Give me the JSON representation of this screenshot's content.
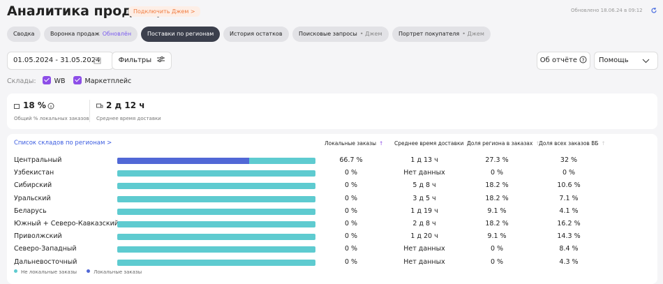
{
  "header": {
    "title": "Аналитика продавца",
    "badge": "Подключить Джем",
    "updated": "Обновлено 18.06.24 в 09:12"
  },
  "tabs": [
    {
      "label": "Сводка"
    },
    {
      "label": "Воронка продаж",
      "tag": "Обновлён"
    },
    {
      "label": "Поставки по регионам",
      "active": true
    },
    {
      "label": "История остатков"
    },
    {
      "label": "Поисковые запросы",
      "tag": "• Джем"
    },
    {
      "label": "Портрет покупателя",
      "tag": "• Джем"
    }
  ],
  "filters": {
    "date_range": "01.05.2024 - 31.05.2024",
    "filters_button": "Фильтры",
    "about": "Об отчёте",
    "help": "Помощь",
    "warehouses_label": "Склады:",
    "warehouses": [
      "WB",
      "Маркетплейс"
    ]
  },
  "stats": [
    {
      "value": "18 %",
      "caption": "Общий % локальных заказов"
    },
    {
      "value": "2 д 12 ч",
      "caption": "Среднее время доставки"
    }
  ],
  "table": {
    "title": "Список складов по регионам",
    "columns": [
      "Локальные заказы",
      "Среднее время доставки",
      "Доля региона в заказах",
      "Доля всех заказов ВБ"
    ],
    "rows": [
      {
        "region": "Центральный",
        "local_orders": 66.7,
        "local_orders_label": "66.7 %",
        "delivery_time": "1 д 13 ч",
        "region_share": "27.3 %",
        "all_orders_share": "32 %"
      },
      {
        "region": "Узбекистан",
        "local_orders": 0,
        "local_orders_label": "0 %",
        "delivery_time": "Нет данных",
        "region_share": "0 %",
        "all_orders_share": "0 %"
      },
      {
        "region": "Сибирский",
        "local_orders": 0,
        "local_orders_label": "0 %",
        "delivery_time": "5 д 8 ч",
        "region_share": "18.2 %",
        "all_orders_share": "10.6 %"
      },
      {
        "region": "Уральский",
        "local_orders": 0,
        "local_orders_label": "0 %",
        "delivery_time": "3 д 5 ч",
        "region_share": "18.2 %",
        "all_orders_share": "7.1 %"
      },
      {
        "region": "Беларусь",
        "local_orders": 0,
        "local_orders_label": "0 %",
        "delivery_time": "1 д 19 ч",
        "region_share": "9.1 %",
        "all_orders_share": "4.1 %"
      },
      {
        "region": "Южный + Северо-Кавказский",
        "local_orders": 0,
        "local_orders_label": "0 %",
        "delivery_time": "2 д 8 ч",
        "region_share": "18.2 %",
        "all_orders_share": "16.2 %"
      },
      {
        "region": "Приволжский",
        "local_orders": 0,
        "local_orders_label": "0 %",
        "delivery_time": "1 д 20 ч",
        "region_share": "9.1 %",
        "all_orders_share": "14.3 %"
      },
      {
        "region": "Северо-Западный",
        "local_orders": 0,
        "local_orders_label": "0 %",
        "delivery_time": "Нет данных",
        "region_share": "0 %",
        "all_orders_share": "8.4 %"
      },
      {
        "region": "Дальневосточный",
        "local_orders": 0,
        "local_orders_label": "0 %",
        "delivery_time": "Нет данных",
        "region_share": "0 %",
        "all_orders_share": "4.3 %"
      }
    ],
    "legend": [
      {
        "name": "Не локальные заказы",
        "color": "#5ecbd0"
      },
      {
        "name": "Локальные заказы",
        "color": "#5168d6"
      }
    ]
  }
}
